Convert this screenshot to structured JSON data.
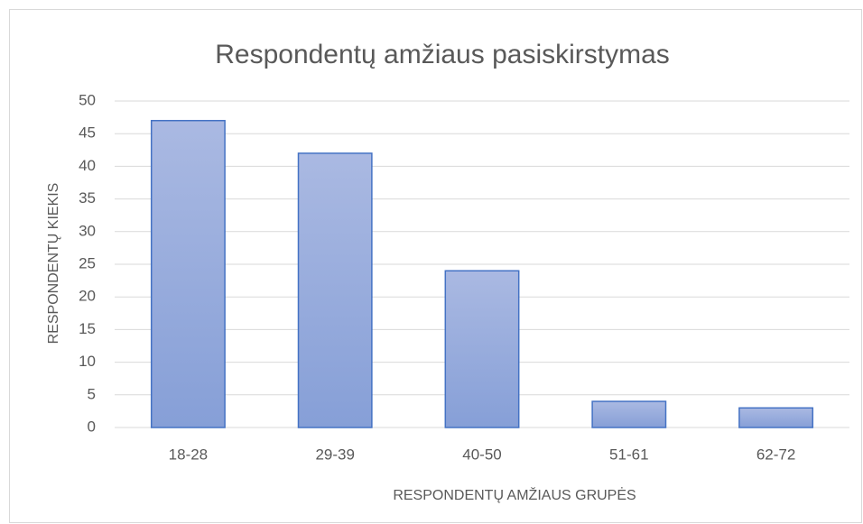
{
  "chart_data": {
    "type": "bar",
    "title": "Respondentų amžiaus pasiskirstymas",
    "x_label": "RESPONDENTŲ AMŽIAUS GRUPĖS",
    "y_label": "RESPONDENTŲ KIEKIS",
    "categories": [
      "18-28",
      "29-39",
      "40-50",
      "51-61",
      "62-72"
    ],
    "values": [
      47,
      42,
      24,
      4,
      3
    ],
    "color": "#4472c4",
    "ylim": [
      0,
      50
    ],
    "yticks": [
      0,
      5,
      10,
      15,
      20,
      25,
      30,
      35,
      40,
      45,
      50
    ],
    "grid": true
  }
}
